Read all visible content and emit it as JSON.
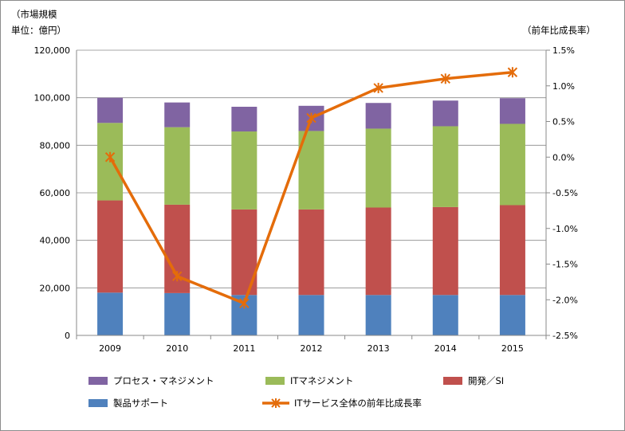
{
  "chart_data": {
    "type": "bar",
    "stacked": true,
    "categories": [
      "2009",
      "2010",
      "2011",
      "2012",
      "2013",
      "2014",
      "2015"
    ],
    "ylabel": "（市場規模",
    "ylabel_unit": "単位：億円）",
    "y2label": "（前年比成長率）",
    "ylim": [
      0,
      120000
    ],
    "yticks": [
      "0",
      "20,000",
      "40,000",
      "60,000",
      "80,000",
      "100,000",
      "120,000"
    ],
    "y2lim": [
      -2.5,
      1.5
    ],
    "y2ticks": [
      "-2.5%",
      "-2.0%",
      "-1.5%",
      "-1.0%",
      "-0.5%",
      "0.0%",
      "0.5%",
      "1.0%",
      "1.5%"
    ],
    "grid": true,
    "legend_position": "bottom",
    "series": [
      {
        "name": "製品サポート",
        "kind": "bar",
        "color": "#4f81bd",
        "values": [
          18000,
          17800,
          17000,
          17000,
          17000,
          17000,
          17000
        ]
      },
      {
        "name": "開発／SI",
        "kind": "bar",
        "color": "#c0504d",
        "values": [
          38800,
          37200,
          36000,
          36000,
          36800,
          37000,
          37800
        ]
      },
      {
        "name": "ITマネジメント",
        "kind": "bar",
        "color": "#9bbb59",
        "values": [
          32600,
          32600,
          32800,
          33000,
          33200,
          34000,
          34200
        ]
      },
      {
        "name": "プロセス・マネジメント",
        "kind": "bar",
        "color": "#8064a2",
        "values": [
          10600,
          10400,
          10400,
          10600,
          10800,
          10800,
          10800
        ]
      },
      {
        "name": "ITサービス全体の前年比成長率",
        "kind": "line",
        "axis": "right",
        "color": "#e46c0a",
        "values": [
          0.0,
          -1.67,
          -2.05,
          0.55,
          0.97,
          1.1,
          1.19
        ]
      }
    ]
  }
}
